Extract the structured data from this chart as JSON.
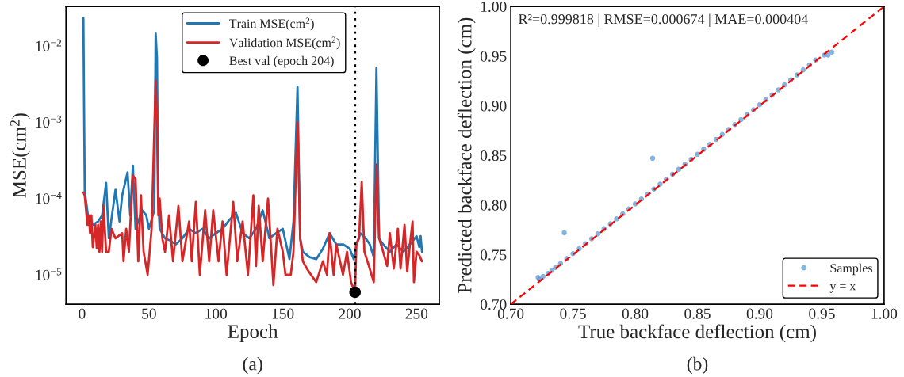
{
  "chart_data": [
    {
      "type": "line",
      "xlabel": "Epoch",
      "ylabel": "MSE(cm$^{2}$)",
      "log": "y",
      "xlim": [
        -12,
        267
      ],
      "xticks": [
        0,
        50,
        100,
        150,
        200,
        250
      ],
      "ylim": [
        4.1e-06,
        0.033
      ],
      "yticks": [
        {
          "value": 1e-05,
          "label": "10$^{−5}$"
        },
        {
          "value": 0.0001,
          "label": "10$^{−4}$"
        },
        {
          "value": 0.001,
          "label": "10$^{−3}$"
        },
        {
          "value": 0.01,
          "label": "10$^{−2}$"
        }
      ],
      "grid": false,
      "legend": "top",
      "annotations": [
        "(a)"
      ],
      "ref_lines": [
        {
          "axis": "x",
          "value": 204,
          "color": "#000000",
          "line_style": "dotted"
        }
      ],
      "series": [
        {
          "name": "Train MSE(cm$^{2}$)",
          "color": "#1f77b4",
          "x": [
            1,
            2,
            5,
            8,
            12,
            15,
            18,
            20,
            25,
            28,
            30,
            34,
            36,
            38,
            40,
            45,
            48,
            50,
            54,
            55,
            56,
            57,
            58,
            62,
            66,
            70,
            75,
            80,
            85,
            90,
            95,
            100,
            105,
            110,
            115,
            120,
            125,
            130,
            135,
            140,
            145,
            150,
            155,
            158,
            161,
            163,
            165,
            170,
            175,
            180,
            185,
            190,
            195,
            200,
            203,
            205,
            208,
            212,
            215,
            218,
            220,
            222,
            225,
            230,
            235,
            240,
            245,
            250,
            252,
            253,
            254
          ],
          "values": [
            0.023,
            0.000125,
            5e-05,
            4.5e-05,
            5e-05,
            6e-05,
            0.00016,
            3e-05,
            0.00013,
            5e-05,
            0.00011,
            0.00022,
            6e-05,
            0.00027,
            4e-05,
            7e-05,
            6e-05,
            4e-05,
            7e-05,
            0.0145,
            0.007,
            0.0001,
            4e-05,
            3e-05,
            2.8e-05,
            2.5e-05,
            3e-05,
            4e-05,
            3.5e-05,
            4e-05,
            3e-05,
            3.5e-05,
            4e-05,
            5.2e-05,
            6.5e-05,
            3.5e-05,
            3e-05,
            4e-05,
            7e-05,
            3e-05,
            3.5e-05,
            4e-05,
            1.6e-05,
            5e-05,
            0.0029,
            3e-05,
            2e-05,
            1.7e-05,
            1.6e-05,
            2.2e-05,
            3.5e-05,
            2.5e-05,
            2.5e-05,
            2.2e-05,
            1.6e-05,
            2.5e-05,
            3.5e-05,
            3e-05,
            2.5e-05,
            1.7e-05,
            0.0051,
            3e-05,
            2.5e-05,
            2e-05,
            2.5e-05,
            2e-05,
            2.5e-05,
            3.2e-05,
            2.3e-05,
            3.2e-05,
            2e-05
          ]
        },
        {
          "name": "Validation MSE(cm$^{2}$)",
          "color": "#d62728",
          "x": [
            1,
            2,
            4,
            5,
            6,
            7,
            8,
            10,
            11,
            12,
            13,
            14,
            15,
            16,
            18,
            20,
            22,
            25,
            30,
            31,
            33,
            35,
            38,
            40,
            42,
            44,
            46,
            49,
            52,
            55,
            56,
            57,
            58,
            60,
            62,
            65,
            68,
            72,
            75,
            80,
            82,
            85,
            88,
            92,
            95,
            98,
            102,
            105,
            108,
            113,
            116,
            120,
            124,
            128,
            130,
            132,
            135,
            139,
            143,
            146,
            150,
            152,
            156,
            158,
            161,
            163,
            165,
            168,
            171,
            175,
            180,
            183,
            185,
            188,
            190,
            195,
            198,
            201,
            203,
            204,
            205,
            207,
            209,
            211,
            215,
            218,
            220,
            222,
            225,
            228,
            230,
            233,
            236,
            238,
            241,
            243,
            245,
            247,
            248,
            250,
            252,
            254
          ],
          "values": [
            0.00012,
            0.00011,
            4.5e-05,
            6e-05,
            3.5e-05,
            6e-05,
            2.3e-05,
            4.5e-05,
            2.2e-05,
            4.5e-05,
            2e-05,
            5e-05,
            2e-05,
            8e-05,
            2e-05,
            2e-05,
            4e-05,
            3e-05,
            3.5e-05,
            1.5e-05,
            4e-05,
            2e-05,
            0.0002,
            0.00018,
            1.5e-05,
            0.00011,
            2e-05,
            1e-05,
            4e-05,
            0.0035,
            0.001,
            6e-05,
            0.0001,
            3e-05,
            2e-05,
            6e-05,
            1.5e-05,
            8e-05,
            1.5e-05,
            5e-05,
            1.5e-05,
            9e-05,
            1e-05,
            7e-05,
            1.5e-05,
            7e-05,
            1.5e-05,
            5e-05,
            1e-05,
            9e-05,
            1.5e-05,
            5e-05,
            1e-05,
            0.00011,
            1.3e-05,
            8e-05,
            1.5e-05,
            0.0001,
            7.3e-06,
            4e-05,
            2e-05,
            1e-05,
            1e-05,
            2e-05,
            0.001,
            3e-05,
            1.5e-05,
            1.2e-05,
            1e-05,
            8e-06,
            1.5e-05,
            1e-05,
            3.5e-05,
            1e-05,
            2.5e-05,
            1e-05,
            2e-05,
            8e-06,
            6.5e-06,
            5.9e-06,
            2.5e-05,
            3e-05,
            0.000165,
            2e-05,
            1.2e-05,
            8e-06,
            0.00028,
            3e-05,
            2e-05,
            1.3e-05,
            3.5e-05,
            1.2e-05,
            4e-05,
            1.2e-05,
            4.5e-05,
            1.1e-05,
            2.5e-05,
            5e-05,
            8e-06,
            2e-05,
            1.8e-05,
            1.5e-05
          ]
        },
        {
          "name": "Best val (epoch 204)",
          "type": "scatter",
          "color": "#000000",
          "x": [
            204
          ],
          "values": [
            5.9e-06
          ]
        }
      ]
    },
    {
      "type": "scatter",
      "xlabel": "True backface deflection (cm)",
      "ylabel": "Predicted backface deflection (cm)",
      "xlim": [
        0.7,
        1.0
      ],
      "ylim": [
        0.7,
        1.0
      ],
      "xticks": [
        {
          "value": 0.7,
          "label": "0.70"
        },
        {
          "value": 0.75,
          "label": "0.75"
        },
        {
          "value": 0.8,
          "label": "0.80"
        },
        {
          "value": 0.85,
          "label": "0.85"
        },
        {
          "value": 0.9,
          "label": "0.90"
        },
        {
          "value": 0.95,
          "label": "0.95"
        },
        {
          "value": 1.0,
          "label": "1.00"
        }
      ],
      "yticks": [
        {
          "value": 0.7,
          "label": "0.70"
        },
        {
          "value": 0.75,
          "label": "0.75"
        },
        {
          "value": 0.8,
          "label": "0.80"
        },
        {
          "value": 0.85,
          "label": "0.85"
        },
        {
          "value": 0.9,
          "label": "0.90"
        },
        {
          "value": 0.95,
          "label": "0.95"
        },
        {
          "value": 1.0,
          "label": "1.00"
        }
      ],
      "grid": false,
      "legend": "bottom right",
      "annotations": [
        "R²=0.999818 | RMSE=0.000674 | MAE=0.000404",
        "(b)"
      ],
      "series": [
        {
          "name": "Samples",
          "color": "#5b9bd5",
          "x": [
            0.722,
            0.723,
            0.726,
            0.73,
            0.733,
            0.736,
            0.74,
            0.743,
            0.745,
            0.75,
            0.755,
            0.76,
            0.765,
            0.77,
            0.775,
            0.78,
            0.785,
            0.79,
            0.795,
            0.8,
            0.805,
            0.81,
            0.814,
            0.815,
            0.82,
            0.825,
            0.83,
            0.835,
            0.84,
            0.845,
            0.85,
            0.855,
            0.86,
            0.865,
            0.87,
            0.875,
            0.88,
            0.885,
            0.89,
            0.895,
            0.9,
            0.905,
            0.91,
            0.915,
            0.92,
            0.925,
            0.93,
            0.935,
            0.94,
            0.945,
            0.952,
            0.955,
            0.958
          ],
          "values": [
            0.727,
            0.725,
            0.728,
            0.731,
            0.734,
            0.737,
            0.741,
            0.772,
            0.746,
            0.751,
            0.756,
            0.761,
            0.766,
            0.771,
            0.776,
            0.781,
            0.786,
            0.791,
            0.796,
            0.801,
            0.806,
            0.811,
            0.847,
            0.816,
            0.821,
            0.826,
            0.831,
            0.836,
            0.841,
            0.846,
            0.851,
            0.856,
            0.861,
            0.866,
            0.871,
            0.876,
            0.881,
            0.886,
            0.891,
            0.896,
            0.901,
            0.906,
            0.911,
            0.916,
            0.921,
            0.926,
            0.931,
            0.936,
            0.941,
            0.946,
            0.951,
            0.951,
            0.954
          ]
        },
        {
          "name": "y = x",
          "type": "line",
          "color": "#ff0000",
          "line_style": "dashed",
          "x": [
            0.7,
            1.0
          ],
          "values": [
            0.7,
            1.0
          ]
        }
      ]
    }
  ]
}
